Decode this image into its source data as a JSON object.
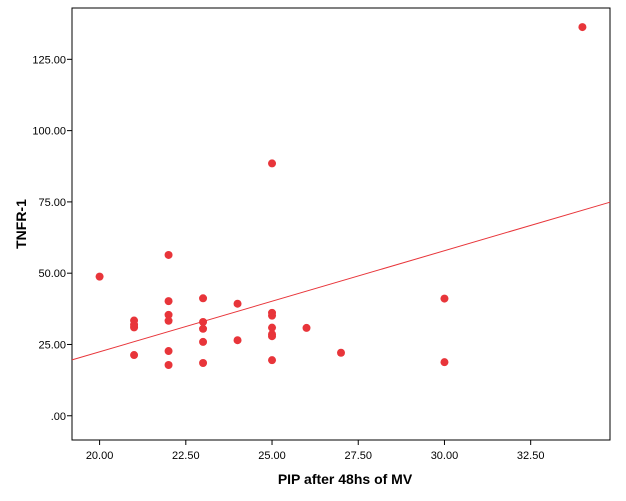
{
  "chart_data": {
    "type": "scatter",
    "title": "",
    "xlabel": "PIP after 48hs of  MV",
    "ylabel": "TNFR-1",
    "xlim": [
      19.2,
      34.8
    ],
    "ylim": [
      -8.5,
      143
    ],
    "x_ticks": [
      20,
      22.5,
      25,
      27.5,
      30,
      32.5
    ],
    "x_tick_labels": [
      "20.00",
      "22.50",
      "25.00",
      "27.50",
      "30.00",
      "32.50"
    ],
    "y_ticks": [
      0,
      25,
      50,
      75,
      100,
      125
    ],
    "y_tick_labels": [
      ".00",
      "25.00",
      "50.00",
      "75.00",
      "100.00",
      "125.00"
    ],
    "grid": false,
    "colors": {
      "points": "#e8353a",
      "fit_line": "#e8353a",
      "frame": "#000000",
      "background": "#ffffff"
    },
    "points": [
      {
        "x": 20,
        "y": 48.8
      },
      {
        "x": 21,
        "y": 33.4
      },
      {
        "x": 21,
        "y": 31.9
      },
      {
        "x": 21,
        "y": 31.0
      },
      {
        "x": 21,
        "y": 21.3
      },
      {
        "x": 22,
        "y": 56.4
      },
      {
        "x": 22,
        "y": 40.2
      },
      {
        "x": 22,
        "y": 35.4
      },
      {
        "x": 22,
        "y": 33.3
      },
      {
        "x": 22,
        "y": 22.7
      },
      {
        "x": 22,
        "y": 17.8
      },
      {
        "x": 23,
        "y": 41.2
      },
      {
        "x": 23,
        "y": 32.9
      },
      {
        "x": 23,
        "y": 30.5
      },
      {
        "x": 23,
        "y": 25.9
      },
      {
        "x": 23,
        "y": 18.5
      },
      {
        "x": 24,
        "y": 39.3
      },
      {
        "x": 24,
        "y": 26.5
      },
      {
        "x": 25,
        "y": 88.5
      },
      {
        "x": 25,
        "y": 36.1
      },
      {
        "x": 25,
        "y": 35.1
      },
      {
        "x": 25,
        "y": 30.9
      },
      {
        "x": 25,
        "y": 28.6
      },
      {
        "x": 25,
        "y": 27.9
      },
      {
        "x": 25,
        "y": 19.5
      },
      {
        "x": 26,
        "y": 30.8
      },
      {
        "x": 27,
        "y": 22.1
      },
      {
        "x": 30,
        "y": 41.1
      },
      {
        "x": 30,
        "y": 18.8
      },
      {
        "x": 34,
        "y": 136.3
      }
    ],
    "fit_line": {
      "x": [
        19.2,
        34.8
      ],
      "y": [
        19.6,
        74.9
      ]
    }
  }
}
